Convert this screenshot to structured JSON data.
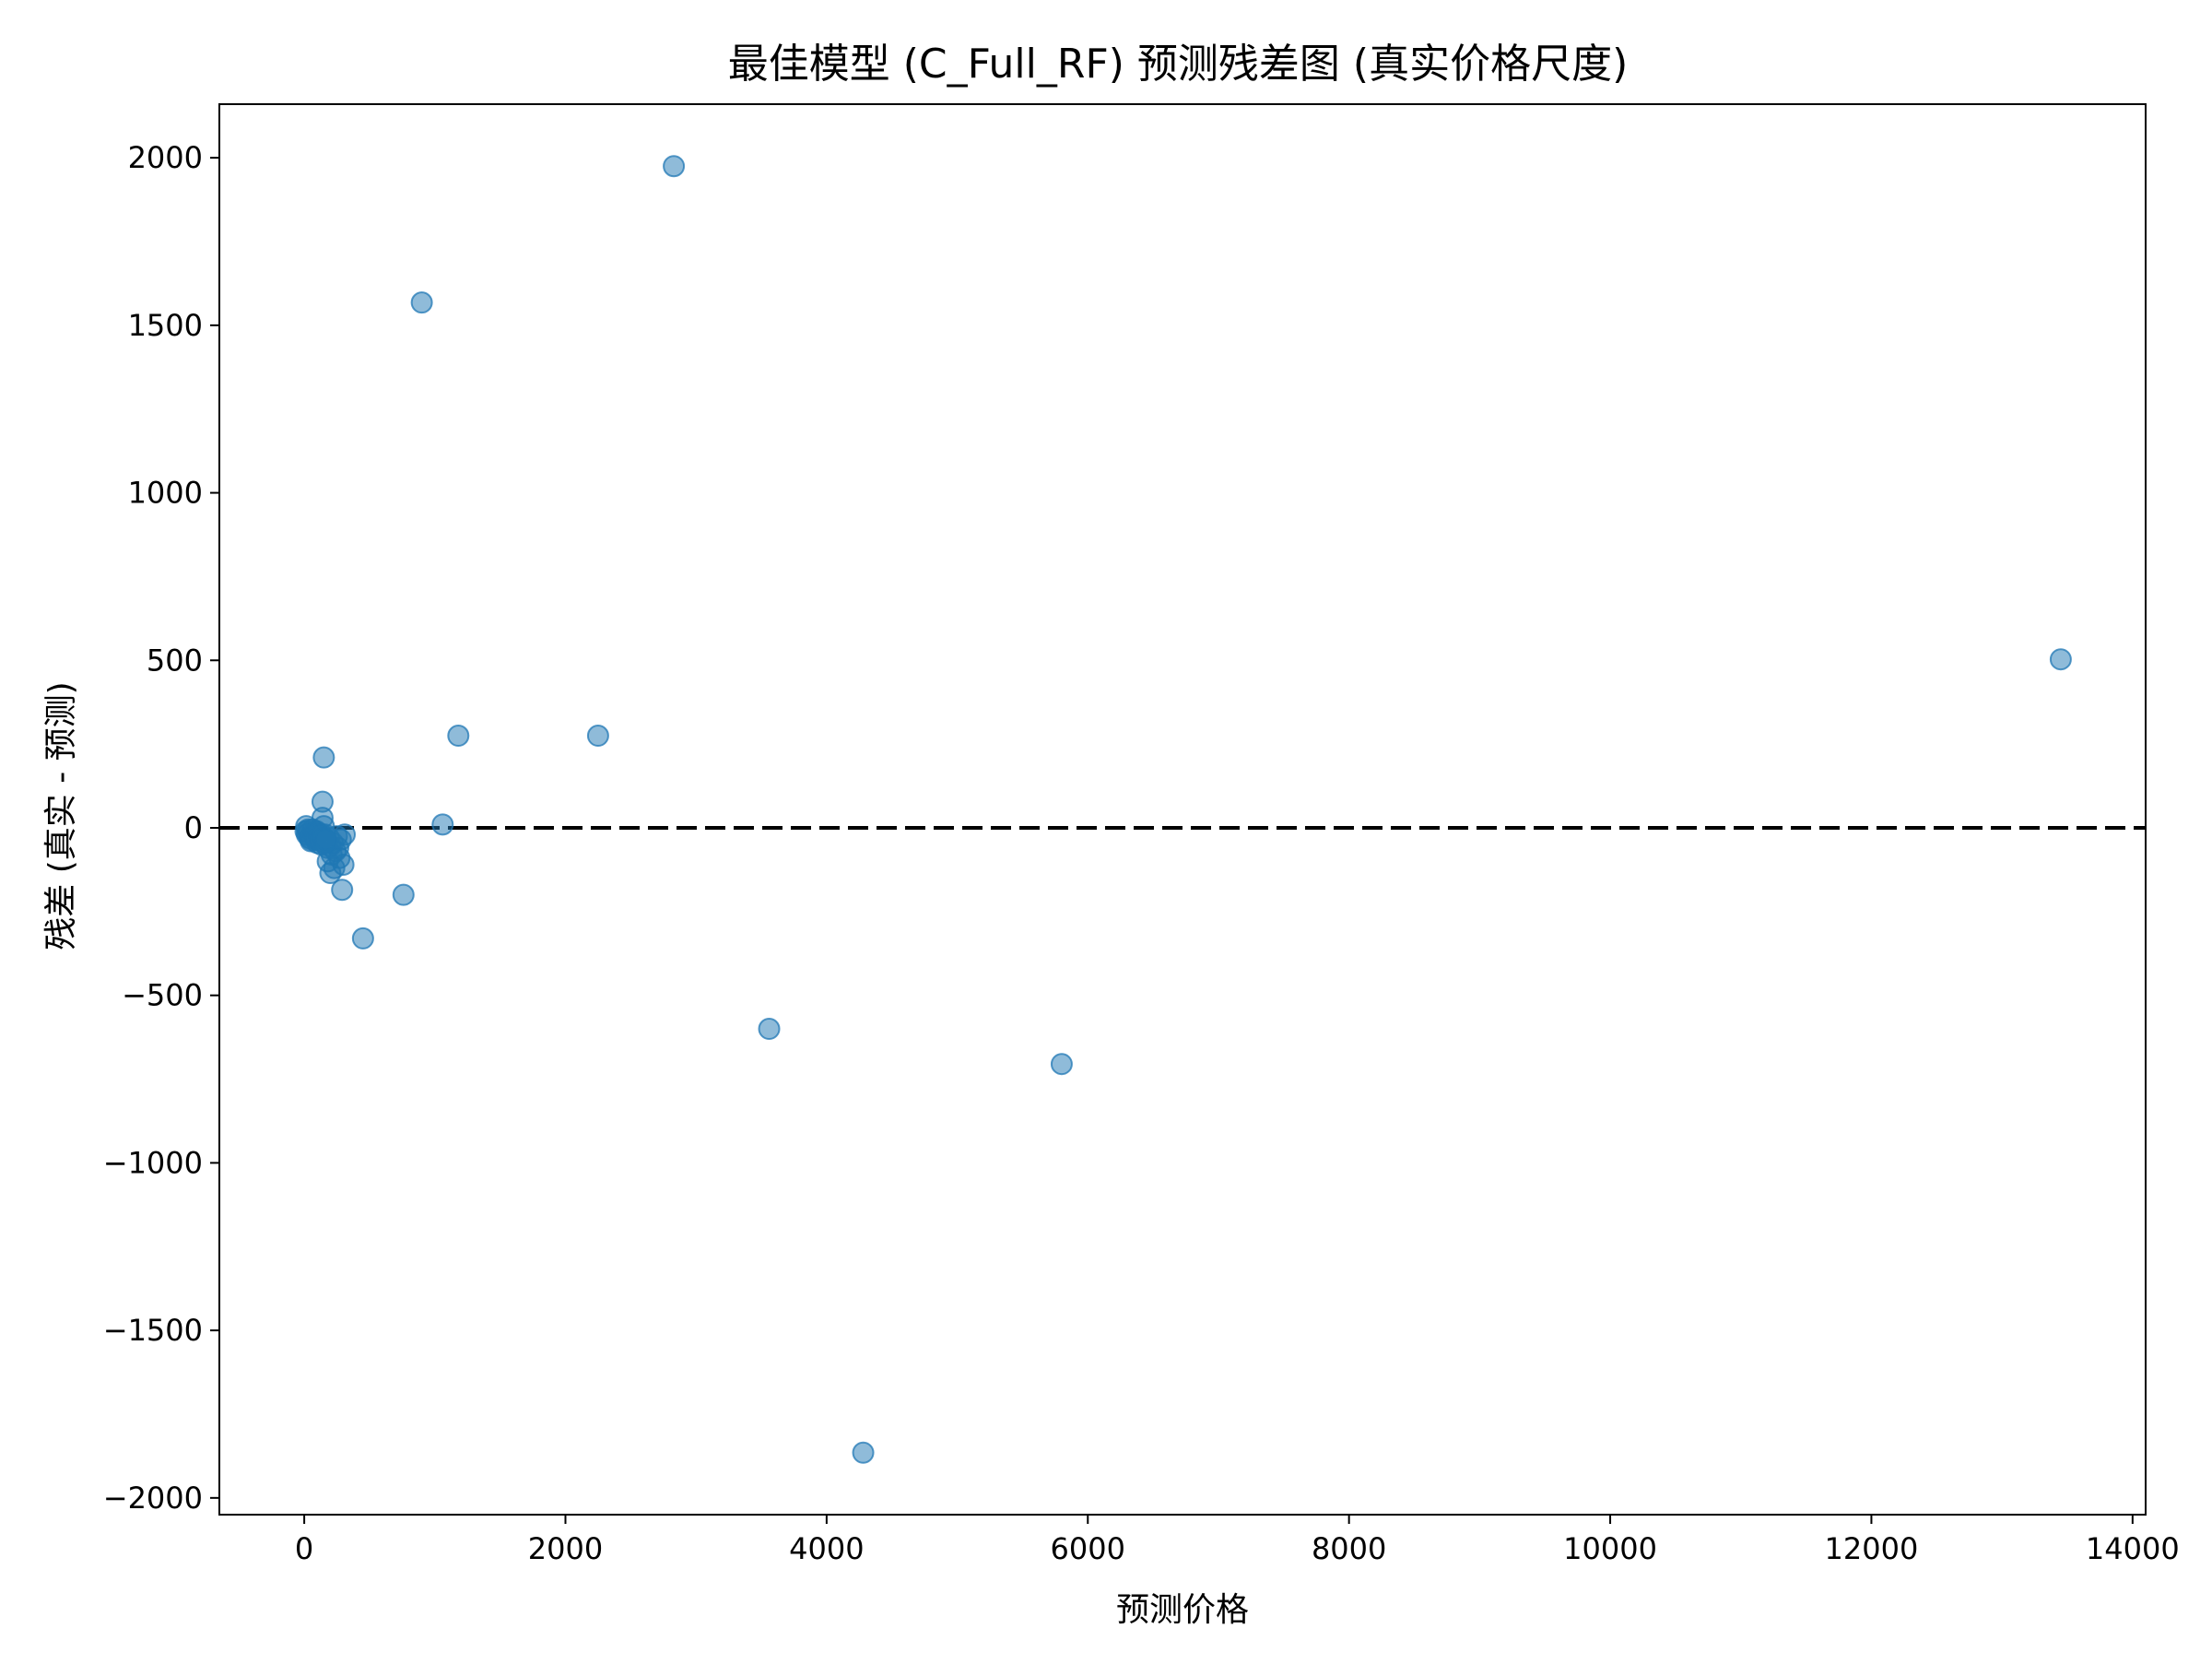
{
  "chart_data": {
    "type": "scatter",
    "title": "最佳模型 (C_Full_RF) 预测残差图 (真实价格尺度)",
    "xlabel": "预测价格",
    "ylabel": "残差 (真实 - 预测)",
    "xlim": [
      -650,
      14100
    ],
    "ylim": [
      -2050,
      2160
    ],
    "xticks": [
      0,
      2000,
      4000,
      6000,
      8000,
      10000,
      12000,
      14000
    ],
    "xtick_labels": [
      "0",
      "2000",
      "4000",
      "6000",
      "8000",
      "10000",
      "12000",
      "14000"
    ],
    "yticks": [
      2000,
      1500,
      1000,
      500,
      0,
      -500,
      -1000,
      -1500,
      -2000
    ],
    "ytick_labels": [
      "2000",
      "1500",
      "1000",
      "500",
      "0",
      "−500",
      "−1000",
      "−1500",
      "−2000"
    ],
    "grid": false,
    "reference_line": {
      "y": 0,
      "style": "dashed",
      "color": "#000000"
    },
    "marker_color": "#1f77b4",
    "marker_alpha": 0.5,
    "series": [
      {
        "x": [
          2830,
          900,
          13450,
          150,
          1180,
          2250,
          140,
          1060,
          760,
          450,
          290,
          200,
          180,
          230,
          300,
          260,
          310,
          3560,
          5800,
          4280,
          10,
          20,
          30,
          40,
          50,
          60,
          70,
          80,
          90,
          100,
          110,
          120,
          130,
          140,
          150,
          160,
          170,
          180,
          190,
          200,
          210,
          220,
          240,
          250,
          270,
          280,
          15,
          25,
          35,
          45,
          55,
          65,
          75,
          85,
          95,
          105,
          115,
          125,
          135,
          145,
          155,
          165
        ],
        "y": [
          1975,
          1568,
          503,
          210,
          275,
          275,
          78,
          10,
          -200,
          -330,
          -185,
          -135,
          -100,
          -120,
          -110,
          -60,
          -20,
          -600,
          -705,
          -1865,
          -10,
          -20,
          -5,
          -30,
          -40,
          -15,
          -25,
          -10,
          -35,
          -45,
          -20,
          -30,
          -50,
          30,
          5,
          -20,
          -40,
          -60,
          -30,
          -55,
          -80,
          -45,
          -70,
          -25,
          -90,
          -35,
          5,
          -10,
          -15,
          -25,
          -35,
          -5,
          -20,
          -30,
          -10,
          -15,
          -25,
          -40,
          -20,
          -30,
          -45,
          -35
        ]
      }
    ]
  }
}
